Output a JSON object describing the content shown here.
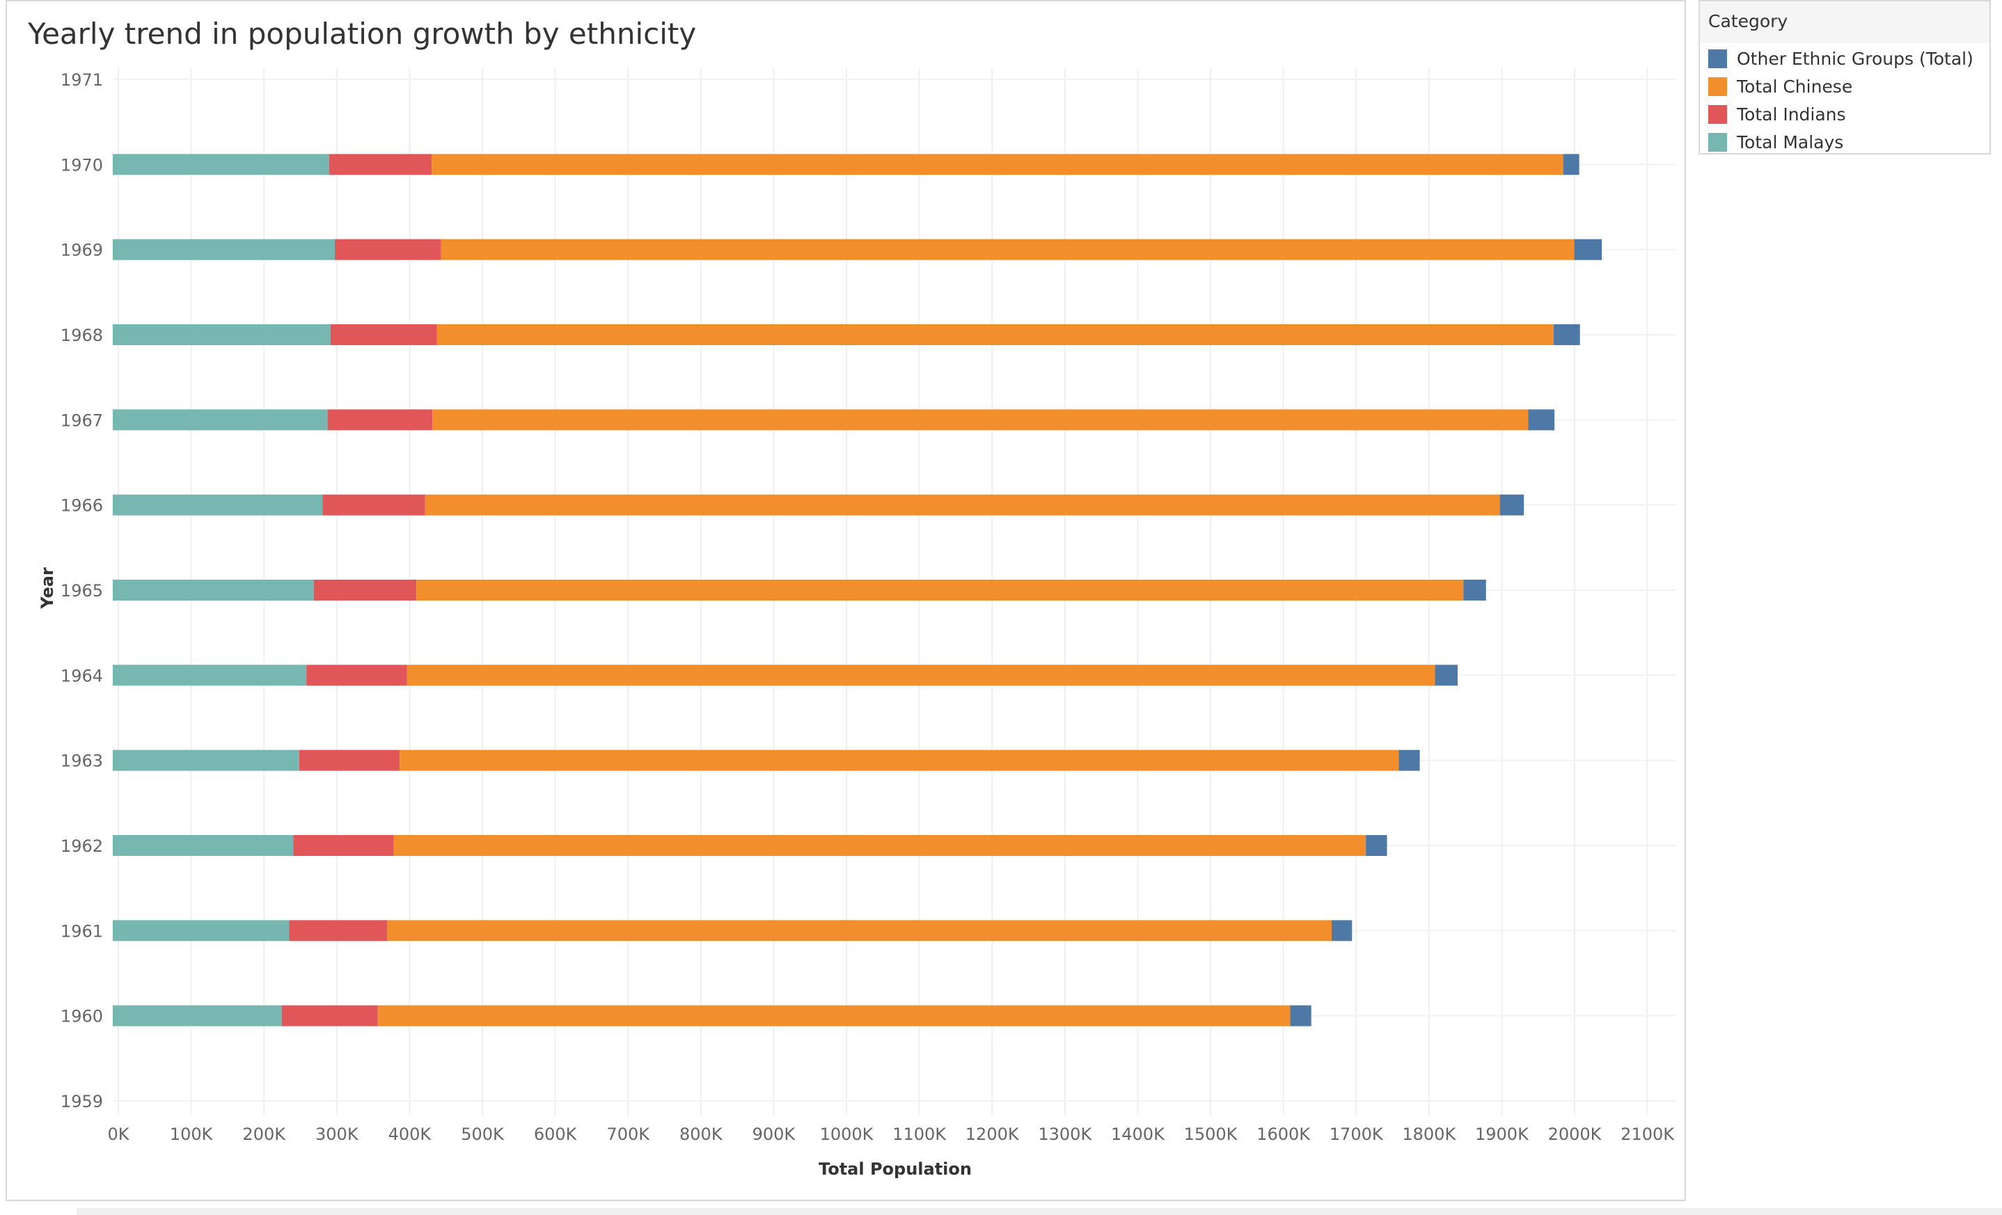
{
  "title": "Yearly trend in population growth by ethnicity",
  "legend": {
    "title": "Category",
    "items": [
      {
        "label": "Other Ethnic Groups (Total)",
        "color": "#4e79a7"
      },
      {
        "label": "Total Chinese",
        "color": "#f28e2b"
      },
      {
        "label": "Total Indians",
        "color": "#e15759"
      },
      {
        "label": "Total Malays",
        "color": "#76b7b2"
      }
    ]
  },
  "chart_data": {
    "type": "bar",
    "orientation": "horizontal",
    "stacked": true,
    "title": "Yearly trend in population growth by ethnicity",
    "xlabel": "Total Population",
    "ylabel": "Year",
    "xlim": [
      0,
      2100000
    ],
    "x_ticks": [
      "0K",
      "100K",
      "200K",
      "300K",
      "400K",
      "500K",
      "600K",
      "700K",
      "800K",
      "900K",
      "1000K",
      "1100K",
      "1200K",
      "1300K",
      "1400K",
      "1500K",
      "1600K",
      "1700K",
      "1800K",
      "1900K",
      "2000K",
      "2100K"
    ],
    "y_ticks": [
      "1971",
      "1970",
      "1969",
      "1968",
      "1967",
      "1966",
      "1965",
      "1964",
      "1963",
      "1962",
      "1961",
      "1960",
      "1959"
    ],
    "categories": [
      "1970",
      "1969",
      "1968",
      "1967",
      "1966",
      "1965",
      "1964",
      "1963",
      "1962",
      "1961",
      "1960"
    ],
    "series": [
      {
        "name": "Total Malays",
        "color": "#76b7b2",
        "values": [
          297000,
          305000,
          299000,
          295000,
          288000,
          276000,
          266000,
          256000,
          248000,
          242000,
          232000
        ]
      },
      {
        "name": "Total Indians",
        "color": "#e15759",
        "values": [
          141000,
          146000,
          146000,
          144000,
          141000,
          141000,
          138000,
          138000,
          138000,
          135000,
          132000
        ]
      },
      {
        "name": "Total Chinese",
        "color": "#f28e2b",
        "values": [
          1554000,
          1556000,
          1534000,
          1505000,
          1476000,
          1438000,
          1412000,
          1372000,
          1335000,
          1297000,
          1253000
        ]
      },
      {
        "name": "Other Ethnic Groups (Total)",
        "color": "#4e79a7",
        "values": [
          22000,
          38000,
          36000,
          36000,
          33000,
          31000,
          31000,
          29000,
          29000,
          28000,
          29000
        ]
      }
    ],
    "grid": true,
    "legend_position": "right"
  }
}
